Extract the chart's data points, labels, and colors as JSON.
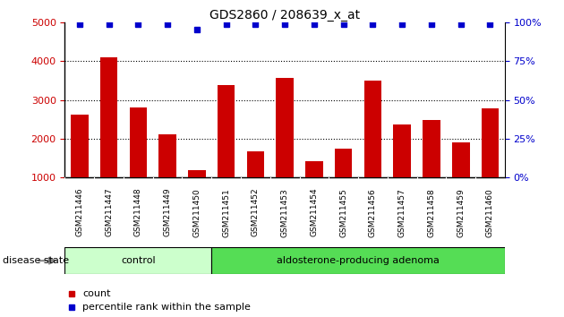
{
  "title": "GDS2860 / 208639_x_at",
  "samples": [
    "GSM211446",
    "GSM211447",
    "GSM211448",
    "GSM211449",
    "GSM211450",
    "GSM211451",
    "GSM211452",
    "GSM211453",
    "GSM211454",
    "GSM211455",
    "GSM211456",
    "GSM211457",
    "GSM211458",
    "GSM211459",
    "GSM211460"
  ],
  "counts": [
    2630,
    4090,
    2810,
    2120,
    1190,
    3390,
    1680,
    3560,
    1430,
    1750,
    3490,
    2370,
    2490,
    1910,
    2770
  ],
  "percentiles": [
    99,
    99,
    99,
    99,
    95,
    99,
    99,
    99,
    99,
    99,
    99,
    99,
    99,
    99,
    99
  ],
  "bar_color": "#cc0000",
  "percentile_color": "#0000cc",
  "ylim_left": [
    1000,
    5000
  ],
  "ylim_right": [
    0,
    100
  ],
  "yticks_left": [
    1000,
    2000,
    3000,
    4000,
    5000
  ],
  "yticks_right": [
    0,
    25,
    50,
    75,
    100
  ],
  "groups": [
    {
      "label": "control",
      "start": 0,
      "end": 5,
      "color": "#ccffcc"
    },
    {
      "label": "aldosterone-producing adenoma",
      "start": 5,
      "end": 15,
      "color": "#55dd55"
    }
  ],
  "group_label_prefix": "disease state",
  "legend_count_label": "count",
  "legend_percentile_label": "percentile rank within the sample",
  "grid_color": "#000000",
  "background_color": "#ffffff",
  "tick_label_color_left": "#cc0000",
  "tick_label_color_right": "#0000cc",
  "xticklabel_bg": "#cccccc",
  "dotted_lines": [
    2000,
    3000,
    4000
  ],
  "bar_width": 0.6
}
